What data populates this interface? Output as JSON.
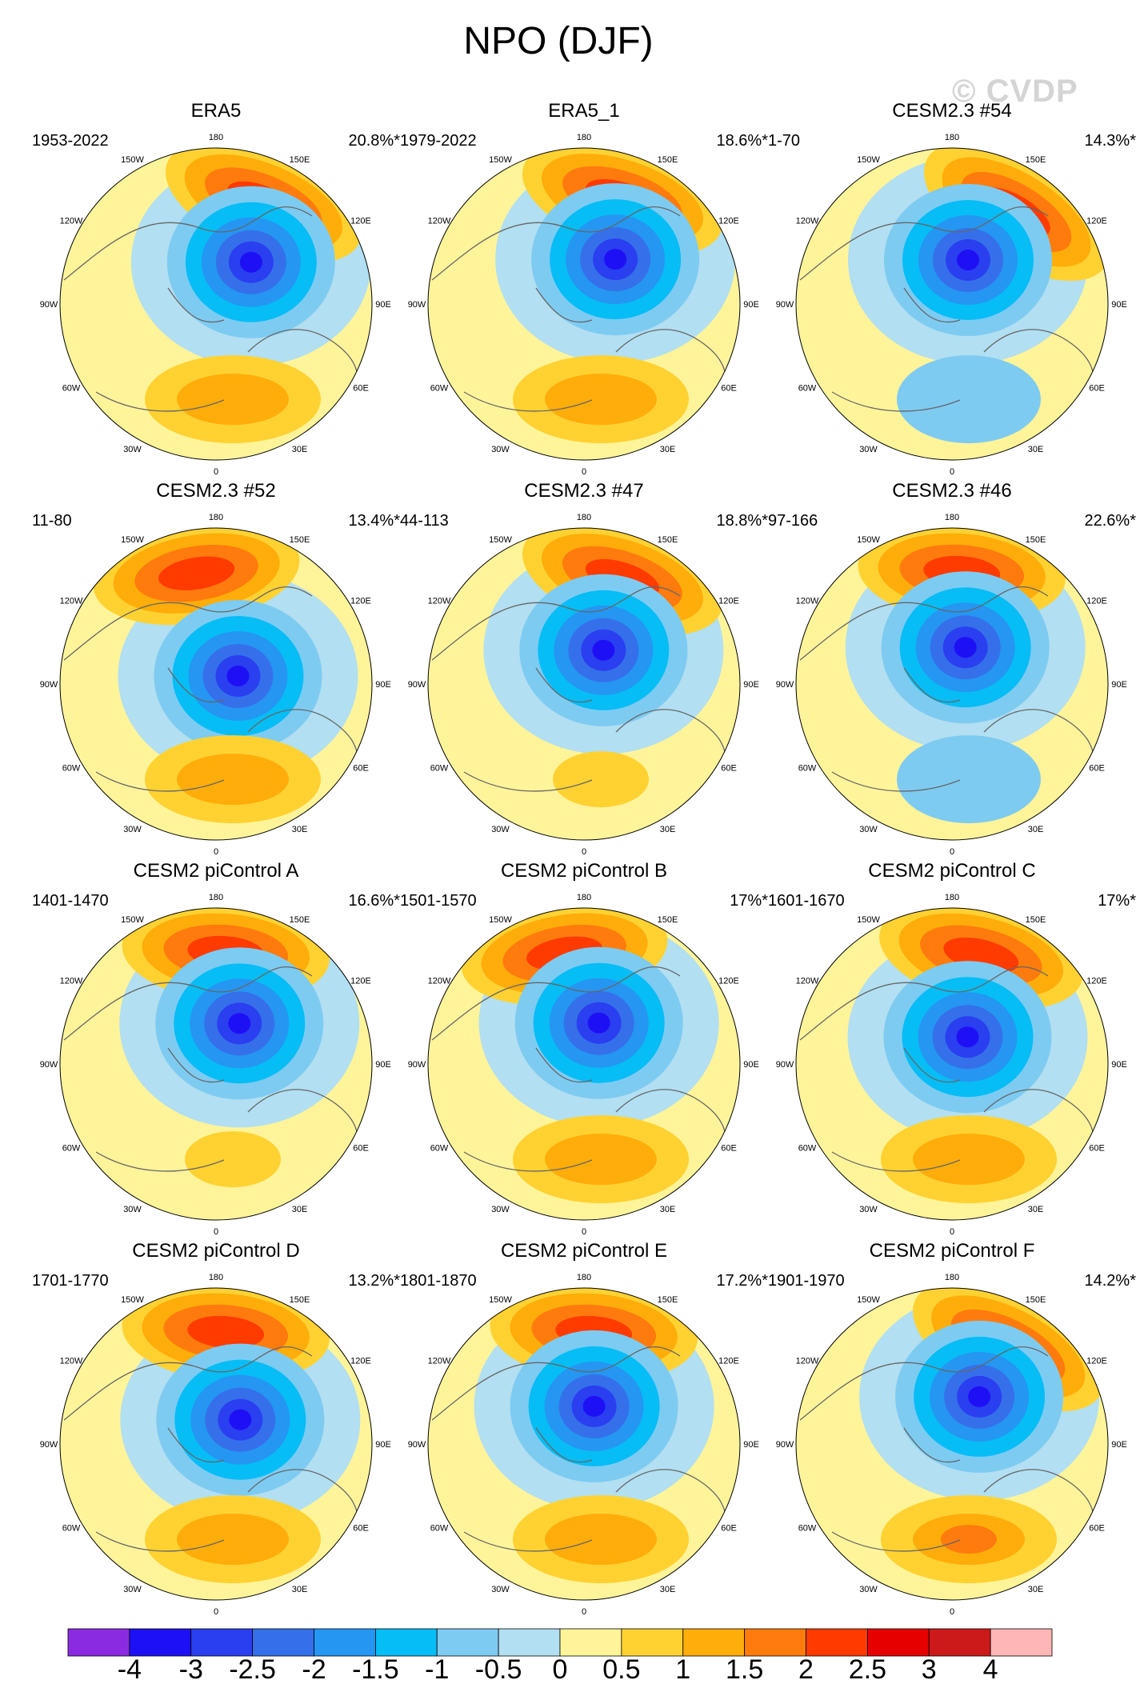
{
  "title": "NPO (DJF)",
  "watermark": "© CVDP",
  "lon_labels": [
    "180",
    "150E",
    "120E",
    "90E",
    "60E",
    "30E",
    "0",
    "30W",
    "60W",
    "90W",
    "120W",
    "150W"
  ],
  "panels": [
    {
      "title": "ERA5",
      "years": "1953-2022",
      "percent": "20.8%*",
      "high_lon": 155,
      "low_lon": 140,
      "low_r": 0.35,
      "ne_atl": "pos"
    },
    {
      "title": "ERA5_1",
      "years": "1979-2022",
      "percent": "18.6%*",
      "high_lon": 160,
      "low_lon": 145,
      "low_r": 0.35,
      "ne_atl": "pos"
    },
    {
      "title": "CESM2.3 #54",
      "years": "1-70",
      "percent": "14.3%*",
      "high_lon": 145,
      "low_lon": 160,
      "low_r": 0.3,
      "ne_atl": "neg"
    },
    {
      "title": "CESM2.3 #52",
      "years": "11-80",
      "percent": "13.4%*",
      "high_lon": 190,
      "low_lon": 110,
      "low_r": 0.15,
      "ne_atl": "pos"
    },
    {
      "title": "CESM2.3 #47",
      "years": "44-113",
      "percent": "18.8%*",
      "high_lon": 160,
      "low_lon": 150,
      "low_r": 0.25,
      "ne_atl": "weakpos"
    },
    {
      "title": "CESM2.3 #46",
      "years": "97-166",
      "percent": "22.6%*",
      "high_lon": 175,
      "low_lon": 160,
      "low_r": 0.25,
      "ne_atl": "neg"
    },
    {
      "title": "CESM2 piControl A",
      "years": "1401-1470",
      "percent": "16.6%*",
      "high_lon": 175,
      "low_lon": 150,
      "low_r": 0.3,
      "ne_atl": "weakpos"
    },
    {
      "title": "CESM2 piControl B",
      "years": "1501-1570",
      "percent": "17%*",
      "high_lon": 190,
      "low_lon": 160,
      "low_r": 0.28,
      "ne_atl": "pos"
    },
    {
      "title": "CESM2 piControl C",
      "years": "1601-1670",
      "percent": "17%*",
      "high_lon": 165,
      "low_lon": 150,
      "low_r": 0.2,
      "ne_atl": "pos"
    },
    {
      "title": "CESM2 piControl D",
      "years": "1701-1770",
      "percent": "13.2%*",
      "high_lon": 175,
      "low_lon": 135,
      "low_r": 0.22,
      "ne_atl": "pos"
    },
    {
      "title": "CESM2 piControl E",
      "years": "1801-1870",
      "percent": "17.2%*",
      "high_lon": 175,
      "low_lon": 165,
      "low_r": 0.25,
      "ne_atl": "pos"
    },
    {
      "title": "CESM2 piControl F",
      "years": "1901-1970",
      "percent": "14.2%*",
      "high_lon": 150,
      "low_lon": 150,
      "low_r": 0.35,
      "ne_atl": "strongpos"
    }
  ],
  "colorbar": {
    "colors": [
      "#8a2be2",
      "#1e10f5",
      "#2a3ff0",
      "#3570ea",
      "#2596f2",
      "#06bdf6",
      "#7ecbf2",
      "#b2dff1",
      "#fff49a",
      "#ffd232",
      "#ffad0a",
      "#ff7b0e",
      "#ff3b00",
      "#e60000",
      "#cc1a1a",
      "#ffb6b6"
    ],
    "labels": [
      "-4",
      "-3",
      "-2.5",
      "-2",
      "-1.5",
      "-1",
      "-0.5",
      "0",
      "0.5",
      "1",
      "1.5",
      "2",
      "2.5",
      "3",
      "4"
    ]
  }
}
